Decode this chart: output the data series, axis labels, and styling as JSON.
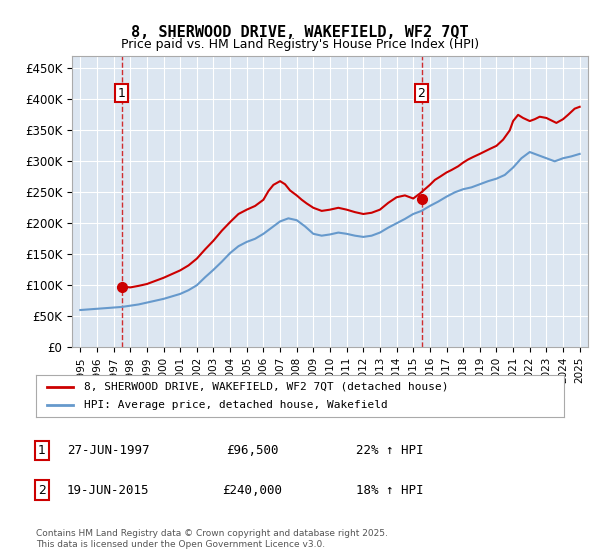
{
  "title": "8, SHERWOOD DRIVE, WAKEFIELD, WF2 7QT",
  "subtitle": "Price paid vs. HM Land Registry's House Price Index (HPI)",
  "background_color": "#dce6f1",
  "plot_bg_color": "#dce6f1",
  "ylim": [
    0,
    470000
  ],
  "yticks": [
    0,
    50000,
    100000,
    150000,
    200000,
    250000,
    300000,
    350000,
    400000,
    450000
  ],
  "ytick_labels": [
    "£0",
    "£50K",
    "£100K",
    "£150K",
    "£200K",
    "£250K",
    "£300K",
    "£350K",
    "£400K",
    "£450K"
  ],
  "legend_line1": "8, SHERWOOD DRIVE, WAKEFIELD, WF2 7QT (detached house)",
  "legend_line2": "HPI: Average price, detached house, Wakefield",
  "annotation1_label": "1",
  "annotation1_date": "27-JUN-1997",
  "annotation1_price": "£96,500",
  "annotation1_hpi": "22% ↑ HPI",
  "annotation2_label": "2",
  "annotation2_date": "19-JUN-2015",
  "annotation2_price": "£240,000",
  "annotation2_hpi": "18% ↑ HPI",
  "footer": "Contains HM Land Registry data © Crown copyright and database right 2025.\nThis data is licensed under the Open Government Licence v3.0.",
  "red_color": "#cc0000",
  "blue_color": "#6699cc",
  "marker_color": "#cc0000",
  "hpi_years": [
    1995,
    1995.5,
    1996,
    1996.5,
    1997,
    1997.5,
    1998,
    1998.5,
    1999,
    1999.5,
    2000,
    2000.5,
    2001,
    2001.5,
    2002,
    2002.5,
    2003,
    2003.5,
    2004,
    2004.5,
    2005,
    2005.5,
    2006,
    2006.5,
    2007,
    2007.5,
    2008,
    2008.5,
    2009,
    2009.5,
    2010,
    2010.5,
    2011,
    2011.5,
    2012,
    2012.5,
    2013,
    2013.5,
    2014,
    2014.5,
    2015,
    2015.5,
    2016,
    2016.5,
    2017,
    2017.5,
    2018,
    2018.5,
    2019,
    2019.5,
    2020,
    2020.5,
    2021,
    2021.5,
    2022,
    2022.5,
    2023,
    2023.5,
    2024,
    2024.5,
    2025
  ],
  "hpi_values": [
    60000,
    61000,
    62000,
    63000,
    64000,
    65000,
    67000,
    69000,
    72000,
    75000,
    78000,
    82000,
    86000,
    92000,
    100000,
    113000,
    125000,
    138000,
    152000,
    163000,
    170000,
    175000,
    183000,
    193000,
    203000,
    208000,
    205000,
    195000,
    183000,
    180000,
    182000,
    185000,
    183000,
    180000,
    178000,
    180000,
    185000,
    193000,
    200000,
    207000,
    215000,
    220000,
    228000,
    235000,
    243000,
    250000,
    255000,
    258000,
    263000,
    268000,
    272000,
    278000,
    290000,
    305000,
    315000,
    310000,
    305000,
    300000,
    305000,
    308000,
    312000
  ],
  "price_years": [
    1997.5,
    1997.6,
    1997.7,
    1997.8,
    1997.9,
    1998.0,
    1998.1,
    1998.2,
    1998.5,
    1999.0,
    1999.5,
    2000.0,
    2000.5,
    2001.0,
    2001.5,
    2002.0,
    2002.5,
    2003.0,
    2003.5,
    2004.0,
    2004.5,
    2005.0,
    2005.5,
    2006.0,
    2006.3,
    2006.6,
    2007.0,
    2007.3,
    2007.6,
    2008.0,
    2008.3,
    2008.6,
    2009.0,
    2009.5,
    2010.0,
    2010.5,
    2011.0,
    2011.5,
    2012.0,
    2012.5,
    2013.0,
    2013.5,
    2014.0,
    2014.5,
    2015.0,
    2015.4,
    2015.7,
    2016.0,
    2016.3,
    2016.6,
    2017.0,
    2017.3,
    2017.7,
    2018.0,
    2018.3,
    2018.6,
    2019.0,
    2019.3,
    2019.6,
    2020.0,
    2020.4,
    2020.8,
    2021.0,
    2021.3,
    2021.6,
    2022.0,
    2022.3,
    2022.6,
    2023.0,
    2023.3,
    2023.6,
    2024.0,
    2024.3,
    2024.5,
    2024.7,
    2025.0
  ],
  "price_values": [
    96500,
    97000,
    97500,
    97000,
    96800,
    96500,
    97000,
    97500,
    99000,
    102000,
    107000,
    112000,
    118000,
    124000,
    132000,
    143000,
    158000,
    172000,
    188000,
    202000,
    215000,
    222000,
    228000,
    238000,
    252000,
    262000,
    268000,
    263000,
    253000,
    245000,
    238000,
    232000,
    225000,
    220000,
    222000,
    225000,
    222000,
    218000,
    215000,
    217000,
    222000,
    233000,
    242000,
    245000,
    240000,
    248000,
    255000,
    262000,
    270000,
    275000,
    282000,
    286000,
    292000,
    298000,
    303000,
    307000,
    312000,
    316000,
    320000,
    325000,
    335000,
    350000,
    365000,
    375000,
    370000,
    365000,
    368000,
    372000,
    370000,
    366000,
    362000,
    368000,
    375000,
    380000,
    385000,
    388000
  ],
  "sale1_x": 1997.5,
  "sale1_y": 96500,
  "sale2_x": 2015.5,
  "sale2_y": 240000,
  "vline1_x": 1997.5,
  "vline2_x": 2015.5,
  "xlim": [
    1994.5,
    2025.5
  ],
  "xtick_years": [
    1995,
    1996,
    1997,
    1998,
    1999,
    2000,
    2001,
    2002,
    2003,
    2004,
    2005,
    2006,
    2007,
    2008,
    2009,
    2010,
    2011,
    2012,
    2013,
    2014,
    2015,
    2016,
    2017,
    2018,
    2019,
    2020,
    2021,
    2022,
    2023,
    2024,
    2025
  ]
}
